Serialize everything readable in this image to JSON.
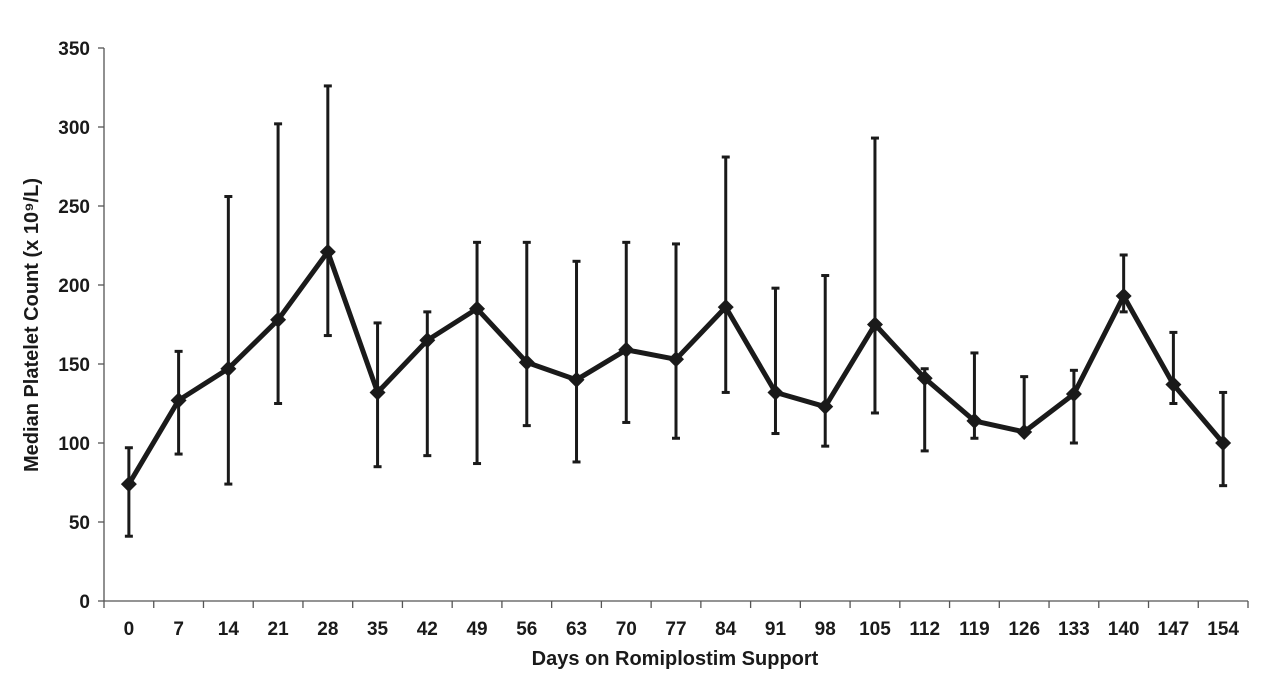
{
  "chart_data": {
    "type": "line",
    "title": "",
    "xlabel": "Days on Romiplostim Support",
    "ylabel": "Median Platelet Count (x 10⁹/L)",
    "ylim": [
      0,
      350
    ],
    "yticks": [
      0,
      50,
      100,
      150,
      200,
      250,
      300,
      350
    ],
    "grid": false,
    "legend": "none",
    "categories": [
      "0",
      "7",
      "14",
      "21",
      "28",
      "35",
      "42",
      "49",
      "56",
      "63",
      "70",
      "77",
      "84",
      "91",
      "98",
      "105",
      "112",
      "119",
      "126",
      "133",
      "140",
      "147",
      "154"
    ],
    "series": [
      {
        "values": [
          74,
          127,
          147,
          178,
          221,
          132,
          165,
          185,
          151,
          140,
          159,
          153,
          186,
          132,
          123,
          175,
          141,
          114,
          107,
          131,
          193,
          137,
          100
        ],
        "error_low": [
          41,
          93,
          74,
          125,
          168,
          85,
          92,
          87,
          111,
          88,
          113,
          103,
          132,
          106,
          98,
          119,
          95,
          103,
          107,
          100,
          183,
          125,
          73
        ],
        "error_high": [
          97,
          158,
          256,
          302,
          326,
          176,
          183,
          227,
          227,
          215,
          227,
          226,
          281,
          198,
          206,
          293,
          147,
          157,
          142,
          146,
          219,
          170,
          132
        ]
      }
    ],
    "color": "#1a1a1a"
  }
}
